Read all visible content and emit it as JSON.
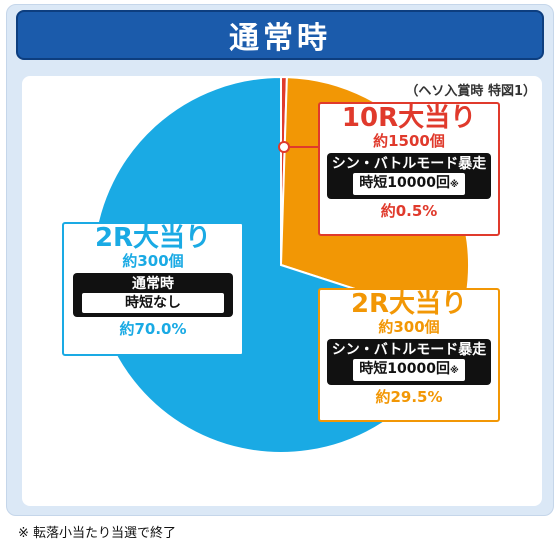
{
  "title": "通常時",
  "source_note": "（ヘソ入賞時 特図1）",
  "footnote": "※ 転落小当たり当選で終了",
  "colors": {
    "blue": "#1aaae4",
    "orange": "#f29705",
    "red": "#e03a2c",
    "title_bg": "#1b5bab"
  },
  "labels": [
    {
      "title": "10R大当り",
      "count": "約1500個",
      "mode": "シン・バトルモード暴走",
      "jitan": "時短10000回",
      "mark": "※",
      "pct": "約0.5%"
    },
    {
      "title": "2R大当り",
      "count": "約300個",
      "mode": "通常時",
      "jitan": "時短なし",
      "mark": "",
      "pct": "約70.0%"
    },
    {
      "title": "2R大当り",
      "count": "約300個",
      "mode": "シン・バトルモード暴走",
      "jitan": "時短10000回",
      "mark": "※",
      "pct": "約29.5%"
    }
  ],
  "chart_data": {
    "type": "pie",
    "title": "通常時",
    "slices": [
      {
        "label": "10R大当り",
        "value": 0.5,
        "color": "#e03a2c"
      },
      {
        "label": "2R大当り (シン・バトルモード暴走)",
        "value": 29.5,
        "color": "#f29705"
      },
      {
        "label": "2R大当り (通常時)",
        "value": 70.0,
        "color": "#1aaae4"
      }
    ],
    "start": "12-o'clock",
    "direction": "clockwise"
  }
}
